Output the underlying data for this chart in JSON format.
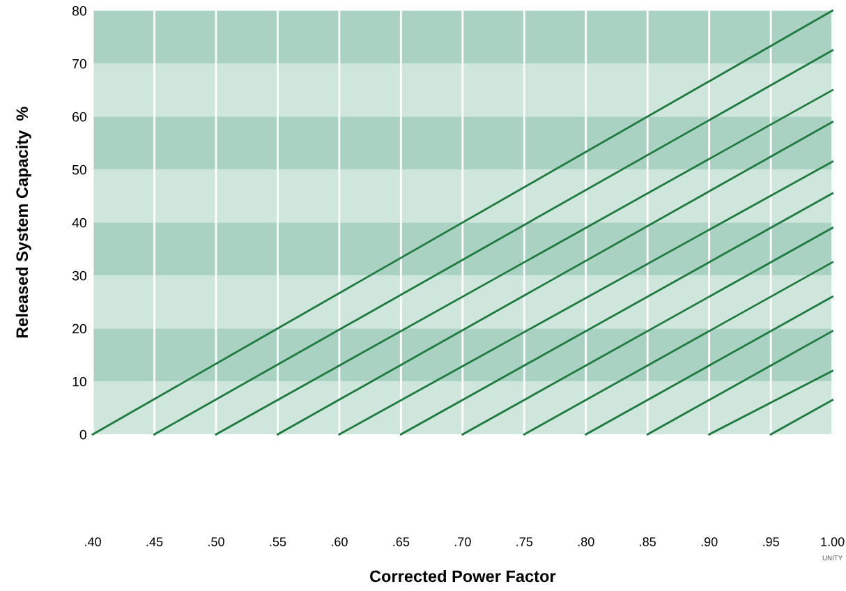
{
  "chart_data": {
    "type": "line",
    "xlabel": "Corrected Power Factor",
    "ylabel": "Released System Capacity  %",
    "xlim": [
      0.4,
      1.0
    ],
    "ylim": [
      0,
      80
    ],
    "xticks": [
      {
        "value": 0.4,
        "label": ".40"
      },
      {
        "value": 0.45,
        "label": ".45"
      },
      {
        "value": 0.5,
        "label": ".50"
      },
      {
        "value": 0.55,
        "label": ".55"
      },
      {
        "value": 0.6,
        "label": ".60"
      },
      {
        "value": 0.65,
        "label": ".65"
      },
      {
        "value": 0.7,
        "label": ".70"
      },
      {
        "value": 0.75,
        "label": ".75"
      },
      {
        "value": 0.8,
        "label": ".80"
      },
      {
        "value": 0.85,
        "label": ".85"
      },
      {
        "value": 0.9,
        "label": ".90"
      },
      {
        "value": 0.95,
        "label": ".95"
      },
      {
        "value": 1.0,
        "label": "1.00"
      }
    ],
    "yticks": [
      0,
      10,
      20,
      30,
      40,
      50,
      60,
      70,
      80
    ],
    "grid": "x",
    "marker": "none",
    "line_style": "solid",
    "annotations": [
      "UNITY"
    ],
    "bands": [
      {
        "axis": "y",
        "from": 0,
        "to": 10,
        "color": "#cfe6dc"
      },
      {
        "axis": "y",
        "from": 10,
        "to": 20,
        "color": "#a9d2c3"
      },
      {
        "axis": "y",
        "from": 20,
        "to": 30,
        "color": "#cfe6dc"
      },
      {
        "axis": "y",
        "from": 30,
        "to": 40,
        "color": "#a9d2c3"
      },
      {
        "axis": "y",
        "from": 40,
        "to": 50,
        "color": "#cfe6dc"
      },
      {
        "axis": "y",
        "from": 50,
        "to": 60,
        "color": "#a9d2c3"
      },
      {
        "axis": "y",
        "from": 60,
        "to": 70,
        "color": "#cfe6dc"
      },
      {
        "axis": "y",
        "from": 70,
        "to": 80,
        "color": "#a9d2c3"
      }
    ],
    "series": [
      {
        "color": "#1e7a3e",
        "x": [
          0.4,
          1.0
        ],
        "values": [
          0,
          80
        ]
      },
      {
        "color": "#1e7a3e",
        "x": [
          0.45,
          1.0
        ],
        "values": [
          0,
          72.5
        ]
      },
      {
        "color": "#1e7a3e",
        "x": [
          0.5,
          1.0
        ],
        "values": [
          0,
          65
        ]
      },
      {
        "color": "#1e7a3e",
        "x": [
          0.55,
          1.0
        ],
        "values": [
          0,
          59
        ]
      },
      {
        "color": "#1e7a3e",
        "x": [
          0.6,
          1.0
        ],
        "values": [
          0,
          51.5
        ]
      },
      {
        "color": "#1e7a3e",
        "x": [
          0.65,
          1.0
        ],
        "values": [
          0,
          45.5
        ]
      },
      {
        "color": "#1e7a3e",
        "x": [
          0.7,
          1.0
        ],
        "values": [
          0,
          39
        ]
      },
      {
        "color": "#1e7a3e",
        "x": [
          0.75,
          1.0
        ],
        "values": [
          0,
          32.5
        ]
      },
      {
        "color": "#1e7a3e",
        "x": [
          0.8,
          1.0
        ],
        "values": [
          0,
          26
        ]
      },
      {
        "color": "#1e7a3e",
        "x": [
          0.85,
          1.0
        ],
        "values": [
          0,
          19.5
        ]
      },
      {
        "color": "#1e7a3e",
        "x": [
          0.9,
          1.0
        ],
        "values": [
          0,
          12
        ]
      },
      {
        "color": "#1e7a3e",
        "x": [
          0.95,
          1.0
        ],
        "values": [
          0,
          6.5
        ]
      }
    ]
  }
}
